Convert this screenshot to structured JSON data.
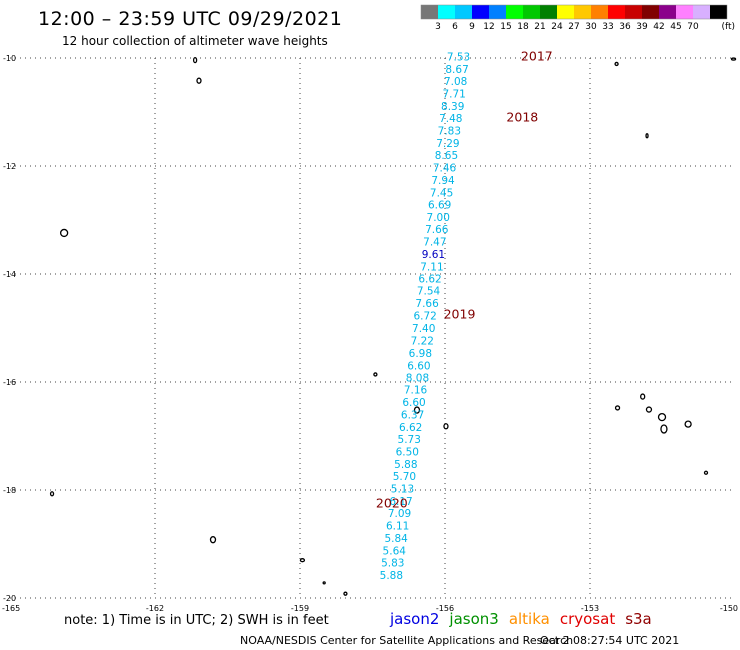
{
  "header": {
    "title": "12:00 – 23:59 UTC 09/29/2021",
    "subtitle": "12 hour collection of altimeter wave heights"
  },
  "color_scale": {
    "labels": [
      "3",
      "6",
      "9",
      "12",
      "15",
      "18",
      "21",
      "24",
      "27",
      "30",
      "33",
      "36",
      "39",
      "42",
      "45",
      "70"
    ],
    "unit": "(ft)",
    "colors": [
      "#777777",
      "#00ffff",
      "#00c8ff",
      "#0000ff",
      "#0080ff",
      "#00ff00",
      "#00c800",
      "#008000",
      "#ffff00",
      "#ffc800",
      "#ff8000",
      "#ff0000",
      "#c80000",
      "#800000",
      "#8b008b",
      "#ff80ff",
      "#d8b0ff",
      "#000000"
    ]
  },
  "map": {
    "lon_range": [
      -165,
      -150
    ],
    "lat_range": [
      -20,
      -10
    ],
    "x_ticks": [
      {
        "value": -165,
        "label": "-165"
      },
      {
        "value": -162,
        "label": "-162"
      },
      {
        "value": -159,
        "label": "-159"
      },
      {
        "value": -156,
        "label": "-156"
      },
      {
        "value": -153,
        "label": "-153"
      },
      {
        "value": -150,
        "label": "-150"
      }
    ],
    "y_ticks": [
      {
        "value": -10,
        "label": "-10"
      },
      {
        "value": -12,
        "label": "-12"
      },
      {
        "value": -14,
        "label": "-14"
      },
      {
        "value": -16,
        "label": "-16"
      },
      {
        "value": -18,
        "label": "-18"
      },
      {
        "value": -20,
        "label": "-20"
      }
    ],
    "grid": "dotted",
    "track_color": "#00b4e6",
    "track_highlight_color": "#0000c0",
    "time_label_color": "#800000",
    "track": [
      {
        "lon": -155.72,
        "lat": -9.97,
        "value": "7.53"
      },
      {
        "lon": -155.75,
        "lat": -10.2,
        "value": "8.67"
      },
      {
        "lon": -155.78,
        "lat": -10.43,
        "value": "7.08"
      },
      {
        "lon": -155.81,
        "lat": -10.66,
        "value": "7.71"
      },
      {
        "lon": -155.84,
        "lat": -10.89,
        "value": "8.39"
      },
      {
        "lon": -155.88,
        "lat": -11.11,
        "value": "7.48"
      },
      {
        "lon": -155.91,
        "lat": -11.34,
        "value": "7.83"
      },
      {
        "lon": -155.94,
        "lat": -11.57,
        "value": "7.29"
      },
      {
        "lon": -155.97,
        "lat": -11.8,
        "value": "8.65"
      },
      {
        "lon": -156.01,
        "lat": -12.03,
        "value": "7.46"
      },
      {
        "lon": -156.04,
        "lat": -12.26,
        "value": "7.94"
      },
      {
        "lon": -156.07,
        "lat": -12.49,
        "value": "7.45"
      },
      {
        "lon": -156.11,
        "lat": -12.71,
        "value": "6.69"
      },
      {
        "lon": -156.14,
        "lat": -12.94,
        "value": "7.00"
      },
      {
        "lon": -156.17,
        "lat": -13.17,
        "value": "7.66"
      },
      {
        "lon": -156.21,
        "lat": -13.4,
        "value": "7.47"
      },
      {
        "lon": -156.24,
        "lat": -13.63,
        "value": "9.61",
        "highlight": true
      },
      {
        "lon": -156.27,
        "lat": -13.86,
        "value": "7.11"
      },
      {
        "lon": -156.31,
        "lat": -14.08,
        "value": "6.62"
      },
      {
        "lon": -156.34,
        "lat": -14.31,
        "value": "7.54"
      },
      {
        "lon": -156.37,
        "lat": -14.54,
        "value": "7.66"
      },
      {
        "lon": -156.41,
        "lat": -14.77,
        "value": "6.72"
      },
      {
        "lon": -156.44,
        "lat": -15.0,
        "value": "7.40"
      },
      {
        "lon": -156.47,
        "lat": -15.23,
        "value": "7.22"
      },
      {
        "lon": -156.51,
        "lat": -15.46,
        "value": "6.98"
      },
      {
        "lon": -156.54,
        "lat": -15.69,
        "value": "6.60"
      },
      {
        "lon": -156.57,
        "lat": -15.92,
        "value": "8.08"
      },
      {
        "lon": -156.61,
        "lat": -16.14,
        "value": "7.16"
      },
      {
        "lon": -156.64,
        "lat": -16.37,
        "value": "6.60"
      },
      {
        "lon": -156.67,
        "lat": -16.6,
        "value": "6.37"
      },
      {
        "lon": -156.71,
        "lat": -16.83,
        "value": "6.62"
      },
      {
        "lon": -156.74,
        "lat": -17.06,
        "value": "5.73"
      },
      {
        "lon": -156.78,
        "lat": -17.29,
        "value": "6.50"
      },
      {
        "lon": -156.81,
        "lat": -17.52,
        "value": "5.88"
      },
      {
        "lon": -156.84,
        "lat": -17.74,
        "value": "5.70"
      },
      {
        "lon": -156.88,
        "lat": -17.97,
        "value": "5.13"
      },
      {
        "lon": -156.91,
        "lat": -18.2,
        "value": "6.17"
      },
      {
        "lon": -156.94,
        "lat": -18.43,
        "value": "7.09"
      },
      {
        "lon": -156.98,
        "lat": -18.66,
        "value": "6.11"
      },
      {
        "lon": -157.01,
        "lat": -18.89,
        "value": "5.84"
      },
      {
        "lon": -157.05,
        "lat": -19.12,
        "value": "5.64"
      },
      {
        "lon": -157.08,
        "lat": -19.34,
        "value": "5.83"
      },
      {
        "lon": -157.11,
        "lat": -19.57,
        "value": "5.88"
      }
    ],
    "time_labels": [
      {
        "lon": -154.1,
        "lat": -9.97,
        "text": "2017"
      },
      {
        "lon": -154.4,
        "lat": -11.1,
        "text": "2018"
      },
      {
        "lon": -155.7,
        "lat": -14.75,
        "text": "2019"
      },
      {
        "lon": -157.1,
        "lat": -18.25,
        "text": "2020"
      }
    ],
    "islands": [
      {
        "lon": -161.17,
        "lat": -10.04,
        "rx": 1.5,
        "ry": 2.5
      },
      {
        "lon": -161.09,
        "lat": -10.42,
        "rx": 2,
        "ry": 2.5
      },
      {
        "lon": -152.45,
        "lat": -10.11,
        "rx": 1.5,
        "ry": 1.5
      },
      {
        "lon": -150.03,
        "lat": -10.02,
        "rx": 2,
        "ry": 1
      },
      {
        "lon": -151.82,
        "lat": -11.44,
        "rx": 1,
        "ry": 2
      },
      {
        "lon": -163.88,
        "lat": -13.24,
        "rx": 3.5,
        "ry": 3.5
      },
      {
        "lon": -157.44,
        "lat": -15.86,
        "rx": 1.5,
        "ry": 1.5
      },
      {
        "lon": -156.58,
        "lat": -16.52,
        "rx": 2.5,
        "ry": 3
      },
      {
        "lon": -155.98,
        "lat": -16.82,
        "rx": 2,
        "ry": 2.5
      },
      {
        "lon": -152.43,
        "lat": -16.48,
        "rx": 2,
        "ry": 2
      },
      {
        "lon": -151.91,
        "lat": -16.27,
        "rx": 2,
        "ry": 2.5
      },
      {
        "lon": -151.78,
        "lat": -16.51,
        "rx": 2.5,
        "ry": 2.5
      },
      {
        "lon": -151.51,
        "lat": -16.65,
        "rx": 3.5,
        "ry": 3.5
      },
      {
        "lon": -151.47,
        "lat": -16.87,
        "rx": 3,
        "ry": 4
      },
      {
        "lon": -150.97,
        "lat": -16.78,
        "rx": 3,
        "ry": 3
      },
      {
        "lon": -150.6,
        "lat": -17.68,
        "rx": 1.5,
        "ry": 1.5
      },
      {
        "lon": -164.13,
        "lat": -18.07,
        "rx": 1.5,
        "ry": 2
      },
      {
        "lon": -160.8,
        "lat": -18.92,
        "rx": 2.5,
        "ry": 3
      },
      {
        "lon": -158.95,
        "lat": -19.3,
        "rx": 2,
        "ry": 1.5
      },
      {
        "lon": -158.06,
        "lat": -19.92,
        "rx": 1.5,
        "ry": 1.5
      },
      {
        "lon": -158.5,
        "lat": -19.72,
        "rx": 1,
        "ry": 1
      }
    ]
  },
  "footer": {
    "note": "note: 1) Time is in UTC; 2) SWH is in feet",
    "satellites": [
      {
        "name": "jason2",
        "color": "#0000e0"
      },
      {
        "name": "jason3",
        "color": "#009000"
      },
      {
        "name": "altika",
        "color": "#ff9000"
      },
      {
        "name": "cryosat",
        "color": "#e00000"
      },
      {
        "name": "s3a",
        "color": "#900000"
      }
    ],
    "credit": "NOAA/NESDIS Center for Satellite Applications and Research",
    "timestamp": "Oct  2 08:27:54 UTC 2021"
  }
}
